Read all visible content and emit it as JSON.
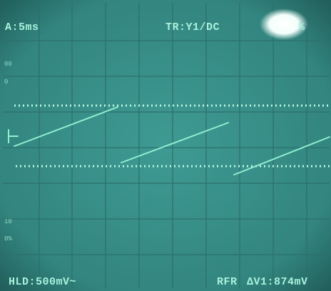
{
  "screen": {
    "top_left": "A:5ms",
    "top_right": "TR:Y1/DC",
    "glare_text": "%",
    "bottom_left": "HLD:500mV~",
    "bottom_mid": "RFR",
    "bottom_right": "ΔV1:874mV",
    "scale_marks": [
      "00",
      "0",
      "10",
      "0%"
    ]
  }
}
